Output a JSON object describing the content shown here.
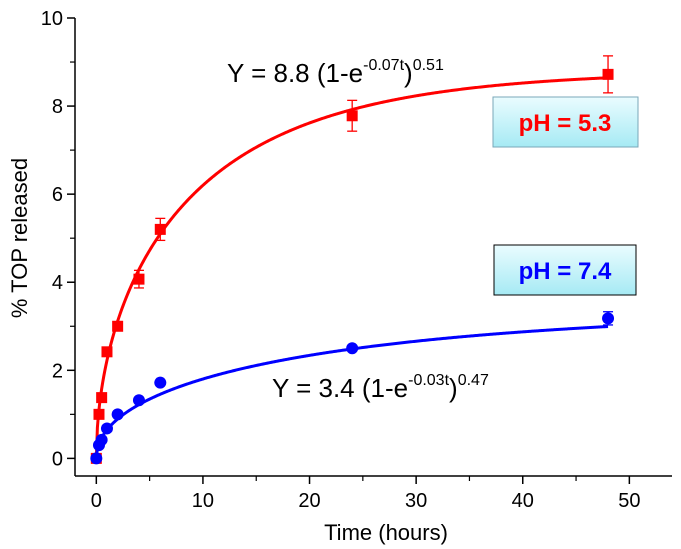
{
  "chart_data": {
    "type": "scatter",
    "xlabel": "Time (hours)",
    "ylabel": "% TOP released",
    "xlim": [
      -2,
      54
    ],
    "ylim": [
      -0.4,
      10
    ],
    "xticks": [
      0,
      10,
      20,
      30,
      40,
      50
    ],
    "xtick_labels": [
      "0",
      "10",
      "20",
      "30",
      "40",
      "50"
    ],
    "yticks": [
      0,
      2,
      4,
      6,
      8,
      10
    ],
    "ytick_labels": [
      "0",
      "2",
      "4",
      "6",
      "8",
      "10"
    ],
    "grid": false,
    "series": [
      {
        "marker": "square",
        "color": "#ff0000",
        "x": [
          0,
          0.25,
          0.5,
          1,
          2,
          4,
          6,
          24,
          48
        ],
        "y": [
          0,
          1.0,
          1.38,
          2.42,
          3.0,
          4.07,
          5.2,
          7.78,
          8.72
        ],
        "error": [
          0,
          0,
          0,
          0,
          0,
          0.2,
          0.25,
          0.35,
          0.42
        ],
        "fit": {
          "a": 8.8,
          "k": 0.07,
          "n": 0.51
        },
        "equation": {
          "prefix": "Y = 8.8 (1-e",
          "exp": "-0.07t",
          "suffix": ")",
          "power": "0.51"
        },
        "label": "pH = 5.3"
      },
      {
        "marker": "circle",
        "color": "#0000ff",
        "x": [
          0,
          0.25,
          0.5,
          1,
          2,
          4,
          6,
          24,
          48
        ],
        "y": [
          0,
          0.3,
          0.42,
          0.68,
          1.0,
          1.32,
          1.72,
          2.5,
          3.18
        ],
        "error": [
          0,
          0,
          0,
          0,
          0,
          0,
          0,
          0,
          0.15
        ],
        "fit": {
          "a": 3.4,
          "k": 0.03,
          "n": 0.47
        },
        "equation": {
          "prefix": "Y = 3.4 (1-e",
          "exp": "-0.03t",
          "suffix": ")",
          "power": "0.47"
        },
        "label": "pH = 7.4"
      }
    ]
  }
}
